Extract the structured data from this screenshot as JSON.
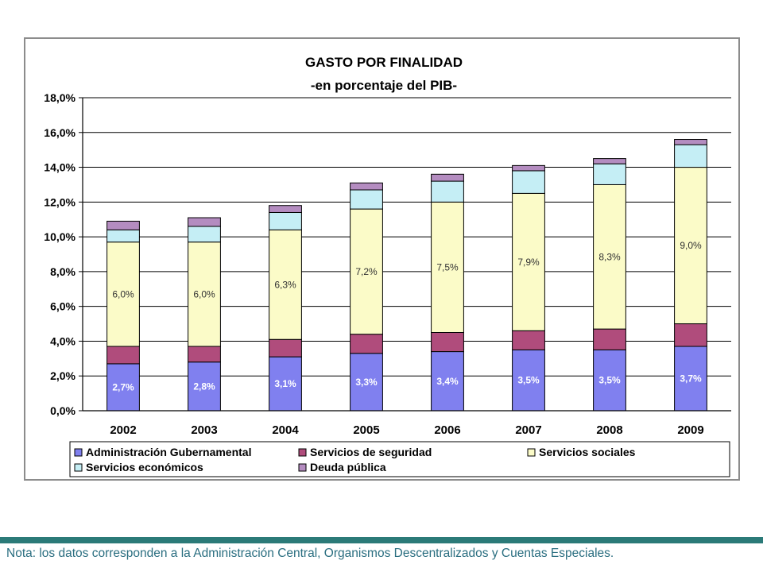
{
  "chart_data": {
    "type": "bar",
    "stacked": true,
    "title": "GASTO POR FINALIDAD",
    "subtitle": "-en porcentaje del PIB-",
    "xlabel": "",
    "ylabel": "",
    "ylim": [
      0,
      18
    ],
    "yticks": [
      0,
      2,
      4,
      6,
      8,
      10,
      12,
      14,
      16,
      18
    ],
    "ytick_labels": [
      "0,0%",
      "2,0%",
      "4,0%",
      "6,0%",
      "8,0%",
      "10,0%",
      "12,0%",
      "14,0%",
      "16,0%",
      "18,0%"
    ],
    "grid": true,
    "legend_position": "bottom",
    "categories": [
      "2002",
      "2003",
      "2004",
      "2005",
      "2006",
      "2007",
      "2008",
      "2009"
    ],
    "series": [
      {
        "name": "Administración Gubernamental",
        "color": "#8080ef",
        "values": [
          2.7,
          2.8,
          3.1,
          3.3,
          3.4,
          3.5,
          3.5,
          3.7
        ],
        "labels": [
          "2,7%",
          "2,8%",
          "3,1%",
          "3,3%",
          "3,4%",
          "3,5%",
          "3,5%",
          "3,7%"
        ],
        "label_color": "#ffffff"
      },
      {
        "name": "Servicios de seguridad",
        "color": "#b04c7c",
        "values": [
          1.0,
          0.9,
          1.0,
          1.1,
          1.1,
          1.1,
          1.2,
          1.3
        ]
      },
      {
        "name": "Servicios sociales",
        "color": "#fbfbc8",
        "values": [
          6.0,
          6.0,
          6.3,
          7.2,
          7.5,
          7.9,
          8.3,
          9.0
        ],
        "labels": [
          "6,0%",
          "6,0%",
          "6,3%",
          "7,2%",
          "7,5%",
          "7,9%",
          "8,3%",
          "9,0%"
        ],
        "label_color": "#333333"
      },
      {
        "name": "Servicios económicos",
        "color": "#c5eef5",
        "values": [
          0.7,
          0.9,
          1.0,
          1.1,
          1.2,
          1.3,
          1.2,
          1.3
        ]
      },
      {
        "name": "Deuda pública",
        "color": "#b48cc0",
        "values": [
          0.5,
          0.5,
          0.4,
          0.4,
          0.4,
          0.3,
          0.3,
          0.3
        ]
      }
    ],
    "legend": [
      "Administración Gubernamental",
      "Servicios de seguridad",
      "Servicios sociales",
      "Servicios económicos",
      "Deuda pública"
    ]
  },
  "footer": {
    "note": "Nota: los datos corresponden a la Administración Central, Organismos Descentralizados y Cuentas Especiales.",
    "bar_color": "#2b7a78"
  }
}
